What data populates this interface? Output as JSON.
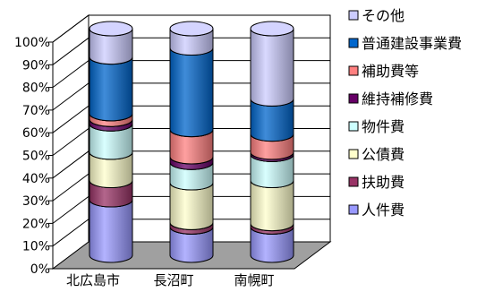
{
  "chart_data": {
    "type": "bar",
    "stacked": true,
    "percent": true,
    "three_d": true,
    "categories": [
      "北広島市",
      "長沼町",
      "南幌町"
    ],
    "y_ticks": [
      "0%",
      "10%",
      "20%",
      "30%",
      "40%",
      "50%",
      "60%",
      "70%",
      "80%",
      "90%",
      "100%"
    ],
    "ylim": [
      0,
      100
    ],
    "legend_position": "right",
    "series": [
      {
        "name": "人件費",
        "color": "#9999ff",
        "values": [
          24.5,
          12.5,
          12.5
        ]
      },
      {
        "name": "扶助費",
        "color": "#993366",
        "values": [
          8.5,
          2.0,
          1.5
        ]
      },
      {
        "name": "公債費",
        "color": "#ffffcc",
        "values": [
          12.5,
          17.5,
          19.0
        ]
      },
      {
        "name": "物件費",
        "color": "#ccffff",
        "values": [
          12.5,
          9.0,
          11.5
        ]
      },
      {
        "name": "維持補修費",
        "color": "#660066",
        "values": [
          2.0,
          2.5,
          1.0
        ]
      },
      {
        "name": "補助費等",
        "color": "#ff8080",
        "values": [
          2.5,
          12.0,
          8.0
        ]
      },
      {
        "name": "普通建設事業費",
        "color": "#0066cc",
        "values": [
          25.0,
          36.0,
          15.5
        ]
      },
      {
        "name": "その他",
        "color": "#ccccff",
        "values": [
          12.5,
          8.5,
          31.0
        ]
      }
    ]
  }
}
